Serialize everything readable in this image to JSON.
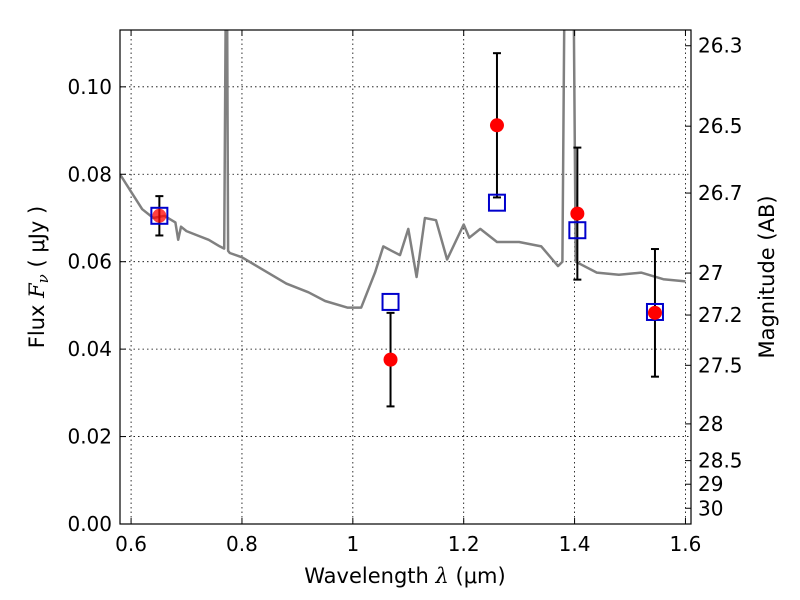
{
  "chart_data": {
    "type": "scatter",
    "xlabel": {
      "prefix": "Wavelength ",
      "symbol": "λ",
      "unit": " (μm)"
    },
    "ylabel": {
      "prefix": "Flux ",
      "symbol": "F",
      "subscript": "ν",
      "unit": " ( μJy )"
    },
    "y2label": "Magnitude (AB)",
    "xlim": [
      0.58,
      1.61
    ],
    "ylim": [
      0.0,
      0.113
    ],
    "grid": true,
    "x_ticks": [
      0.6,
      0.8,
      1.0,
      1.2,
      1.4,
      1.6
    ],
    "x_tick_labels": [
      "0.6",
      "0.8",
      "1",
      "1.2",
      "1.4",
      "1.6"
    ],
    "y_ticks": [
      0.0,
      0.02,
      0.04,
      0.06,
      0.08,
      0.1
    ],
    "y_tick_labels": [
      "0.00",
      "0.02",
      "0.04",
      "0.06",
      "0.08",
      "0.10"
    ],
    "y2_ticks": [
      {
        "label": "26.3",
        "flux": 0.1094
      },
      {
        "label": "26.5",
        "flux": 0.091
      },
      {
        "label": "26.7",
        "flux": 0.0757
      },
      {
        "label": "27",
        "flux": 0.0574
      },
      {
        "label": "27.2",
        "flux": 0.0478
      },
      {
        "label": "27.5",
        "flux": 0.0363
      },
      {
        "label": "28",
        "flux": 0.0229
      },
      {
        "label": "28.5",
        "flux": 0.0145
      },
      {
        "label": "29",
        "flux": 0.0091
      },
      {
        "label": "30",
        "flux": 0.0036
      }
    ],
    "model_spectrum": {
      "color": "#808080",
      "x": [
        0.58,
        0.6,
        0.62,
        0.64,
        0.66,
        0.68,
        0.685,
        0.69,
        0.7,
        0.72,
        0.74,
        0.76,
        0.768,
        0.771,
        0.773,
        0.775,
        0.778,
        0.8,
        0.84,
        0.88,
        0.92,
        0.95,
        0.99,
        1.015,
        1.04,
        1.055,
        1.07,
        1.085,
        1.1,
        1.115,
        1.13,
        1.15,
        1.17,
        1.2,
        1.21,
        1.23,
        1.26,
        1.3,
        1.34,
        1.36,
        1.37,
        1.378,
        1.382,
        1.398,
        1.402,
        1.44,
        1.48,
        1.52,
        1.56,
        1.6
      ],
      "y": [
        0.08,
        0.076,
        0.072,
        0.07,
        0.0705,
        0.069,
        0.065,
        0.068,
        0.067,
        0.066,
        0.065,
        0.0635,
        0.063,
        0.125,
        0.125,
        0.0625,
        0.062,
        0.061,
        0.058,
        0.055,
        0.053,
        0.051,
        0.0495,
        0.0495,
        0.0575,
        0.0635,
        0.0625,
        0.0615,
        0.0675,
        0.0565,
        0.07,
        0.0695,
        0.0605,
        0.0685,
        0.0655,
        0.0675,
        0.0645,
        0.0645,
        0.0635,
        0.0605,
        0.059,
        0.06,
        0.125,
        0.125,
        0.06,
        0.0575,
        0.057,
        0.0575,
        0.056,
        0.0555
      ]
    },
    "series": [
      {
        "name": "",
        "marker": "circle",
        "color": "#ff0000",
        "x": [
          0.651,
          1.068,
          1.26,
          1.405,
          1.545
        ],
        "y": [
          0.0705,
          0.0376,
          0.0912,
          0.071,
          0.0483
        ],
        "yerr": [
          0.0045,
          0.0107,
          0.0165,
          0.0151,
          0.0146
        ]
      },
      {
        "name": "",
        "marker": "open-square",
        "color": "#0000cc",
        "x": [
          0.651,
          1.068,
          1.26,
          1.405,
          1.545
        ],
        "y": [
          0.0705,
          0.0508,
          0.0735,
          0.0672,
          0.0485
        ]
      }
    ]
  }
}
